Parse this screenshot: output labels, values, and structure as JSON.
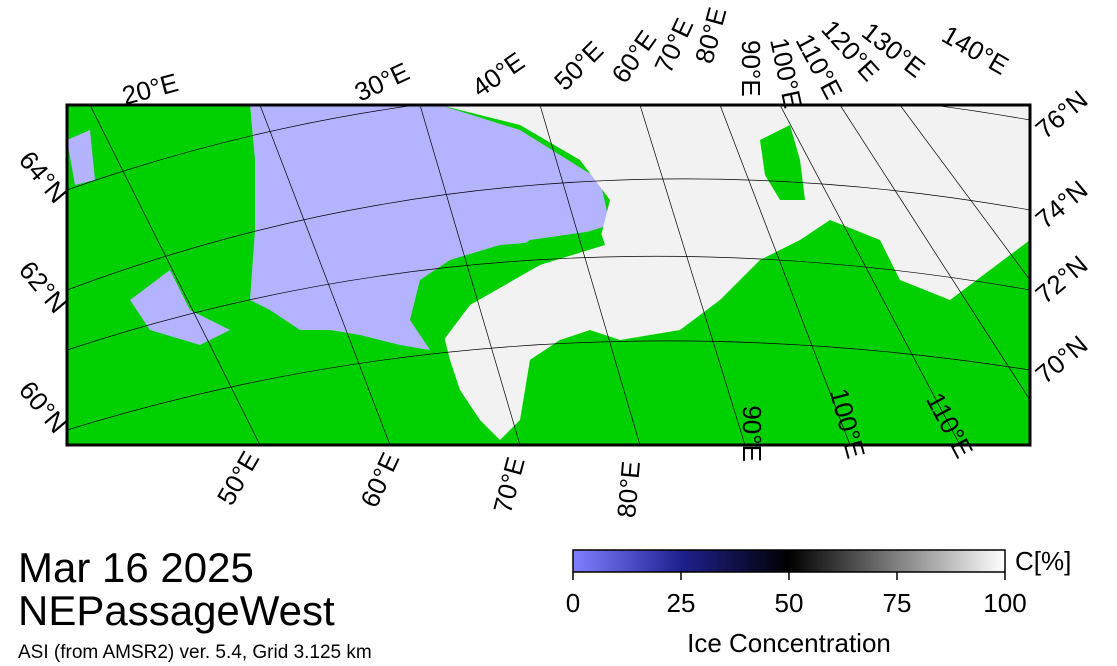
{
  "map": {
    "top_labels": [
      "20°E",
      "30°E",
      "40°E",
      "50°E",
      "60°E",
      "70°E",
      "80°E",
      "90°E",
      "100°E",
      "110°E",
      "120°E",
      "130°E",
      "140°E"
    ],
    "bottom_labels": [
      "50°E",
      "60°E",
      "70°E",
      "80°E",
      "90°E",
      "100°E",
      "110°E"
    ],
    "right_labels": [
      "76°N",
      "74°N",
      "72°N",
      "70°N"
    ],
    "left_labels": [
      "64°N",
      "62°N",
      "60°N"
    ]
  },
  "date": "Mar 16 2025",
  "region": "NEPassageWest",
  "product": "ASI (from AMSR2) ver. 5.4,  Grid 3.125 km",
  "colorbar": {
    "title": "Ice Concentration",
    "unit": "C[%]",
    "range": [
      0,
      100
    ],
    "ticks": [
      0,
      25,
      50,
      75,
      100
    ]
  }
}
